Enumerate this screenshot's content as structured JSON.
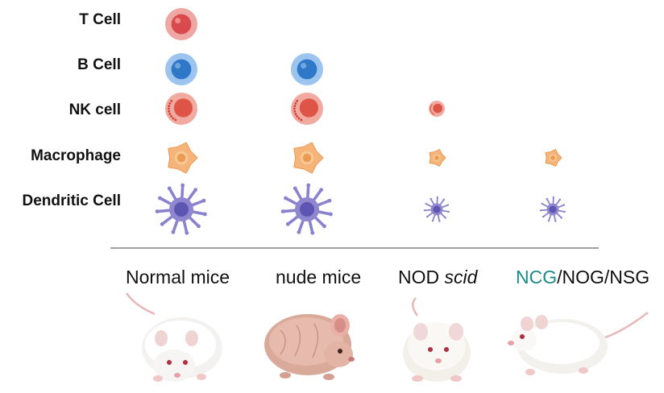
{
  "rows": [
    {
      "key": "t_cell",
      "label": "T Cell"
    },
    {
      "key": "b_cell",
      "label": "B Cell"
    },
    {
      "key": "nk_cell",
      "label": "NK cell"
    },
    {
      "key": "macrophage",
      "label": "Macrophage"
    },
    {
      "key": "dendritic_cell",
      "label": "Dendritic Cell"
    }
  ],
  "strains": [
    {
      "key": "normal",
      "label": "Normal mice"
    },
    {
      "key": "nude",
      "label": "nude mice"
    },
    {
      "key": "nod_scid",
      "label_prefix": "NOD ",
      "label_italic": "scid"
    },
    {
      "key": "ncg",
      "label_highlight": "NCG",
      "label_rest": "/NOG/NSG",
      "highlight_color": "#1a8a8a"
    }
  ],
  "presence": {
    "normal": [
      "full",
      "full",
      "full",
      "full",
      "full"
    ],
    "nude": [
      "absent",
      "full",
      "full",
      "full",
      "full"
    ],
    "nod_scid": [
      "absent",
      "absent",
      "reduced",
      "reduced",
      "reduced"
    ],
    "ncg": [
      "absent",
      "absent",
      "absent",
      "reduced",
      "reduced"
    ]
  },
  "colors": {
    "t_cell": "#e0585a",
    "b_cell": "#3b86d4",
    "nk_cell": "#e0665a",
    "macrophage": "#f0a058",
    "dendritic_cell": "#8078c4",
    "divider": "#a0a0a0"
  },
  "icons": [
    "t-cell-icon",
    "b-cell-icon",
    "nk-cell-icon",
    "macrophage-icon",
    "dendritic-cell-icon",
    "mouse-icon"
  ]
}
